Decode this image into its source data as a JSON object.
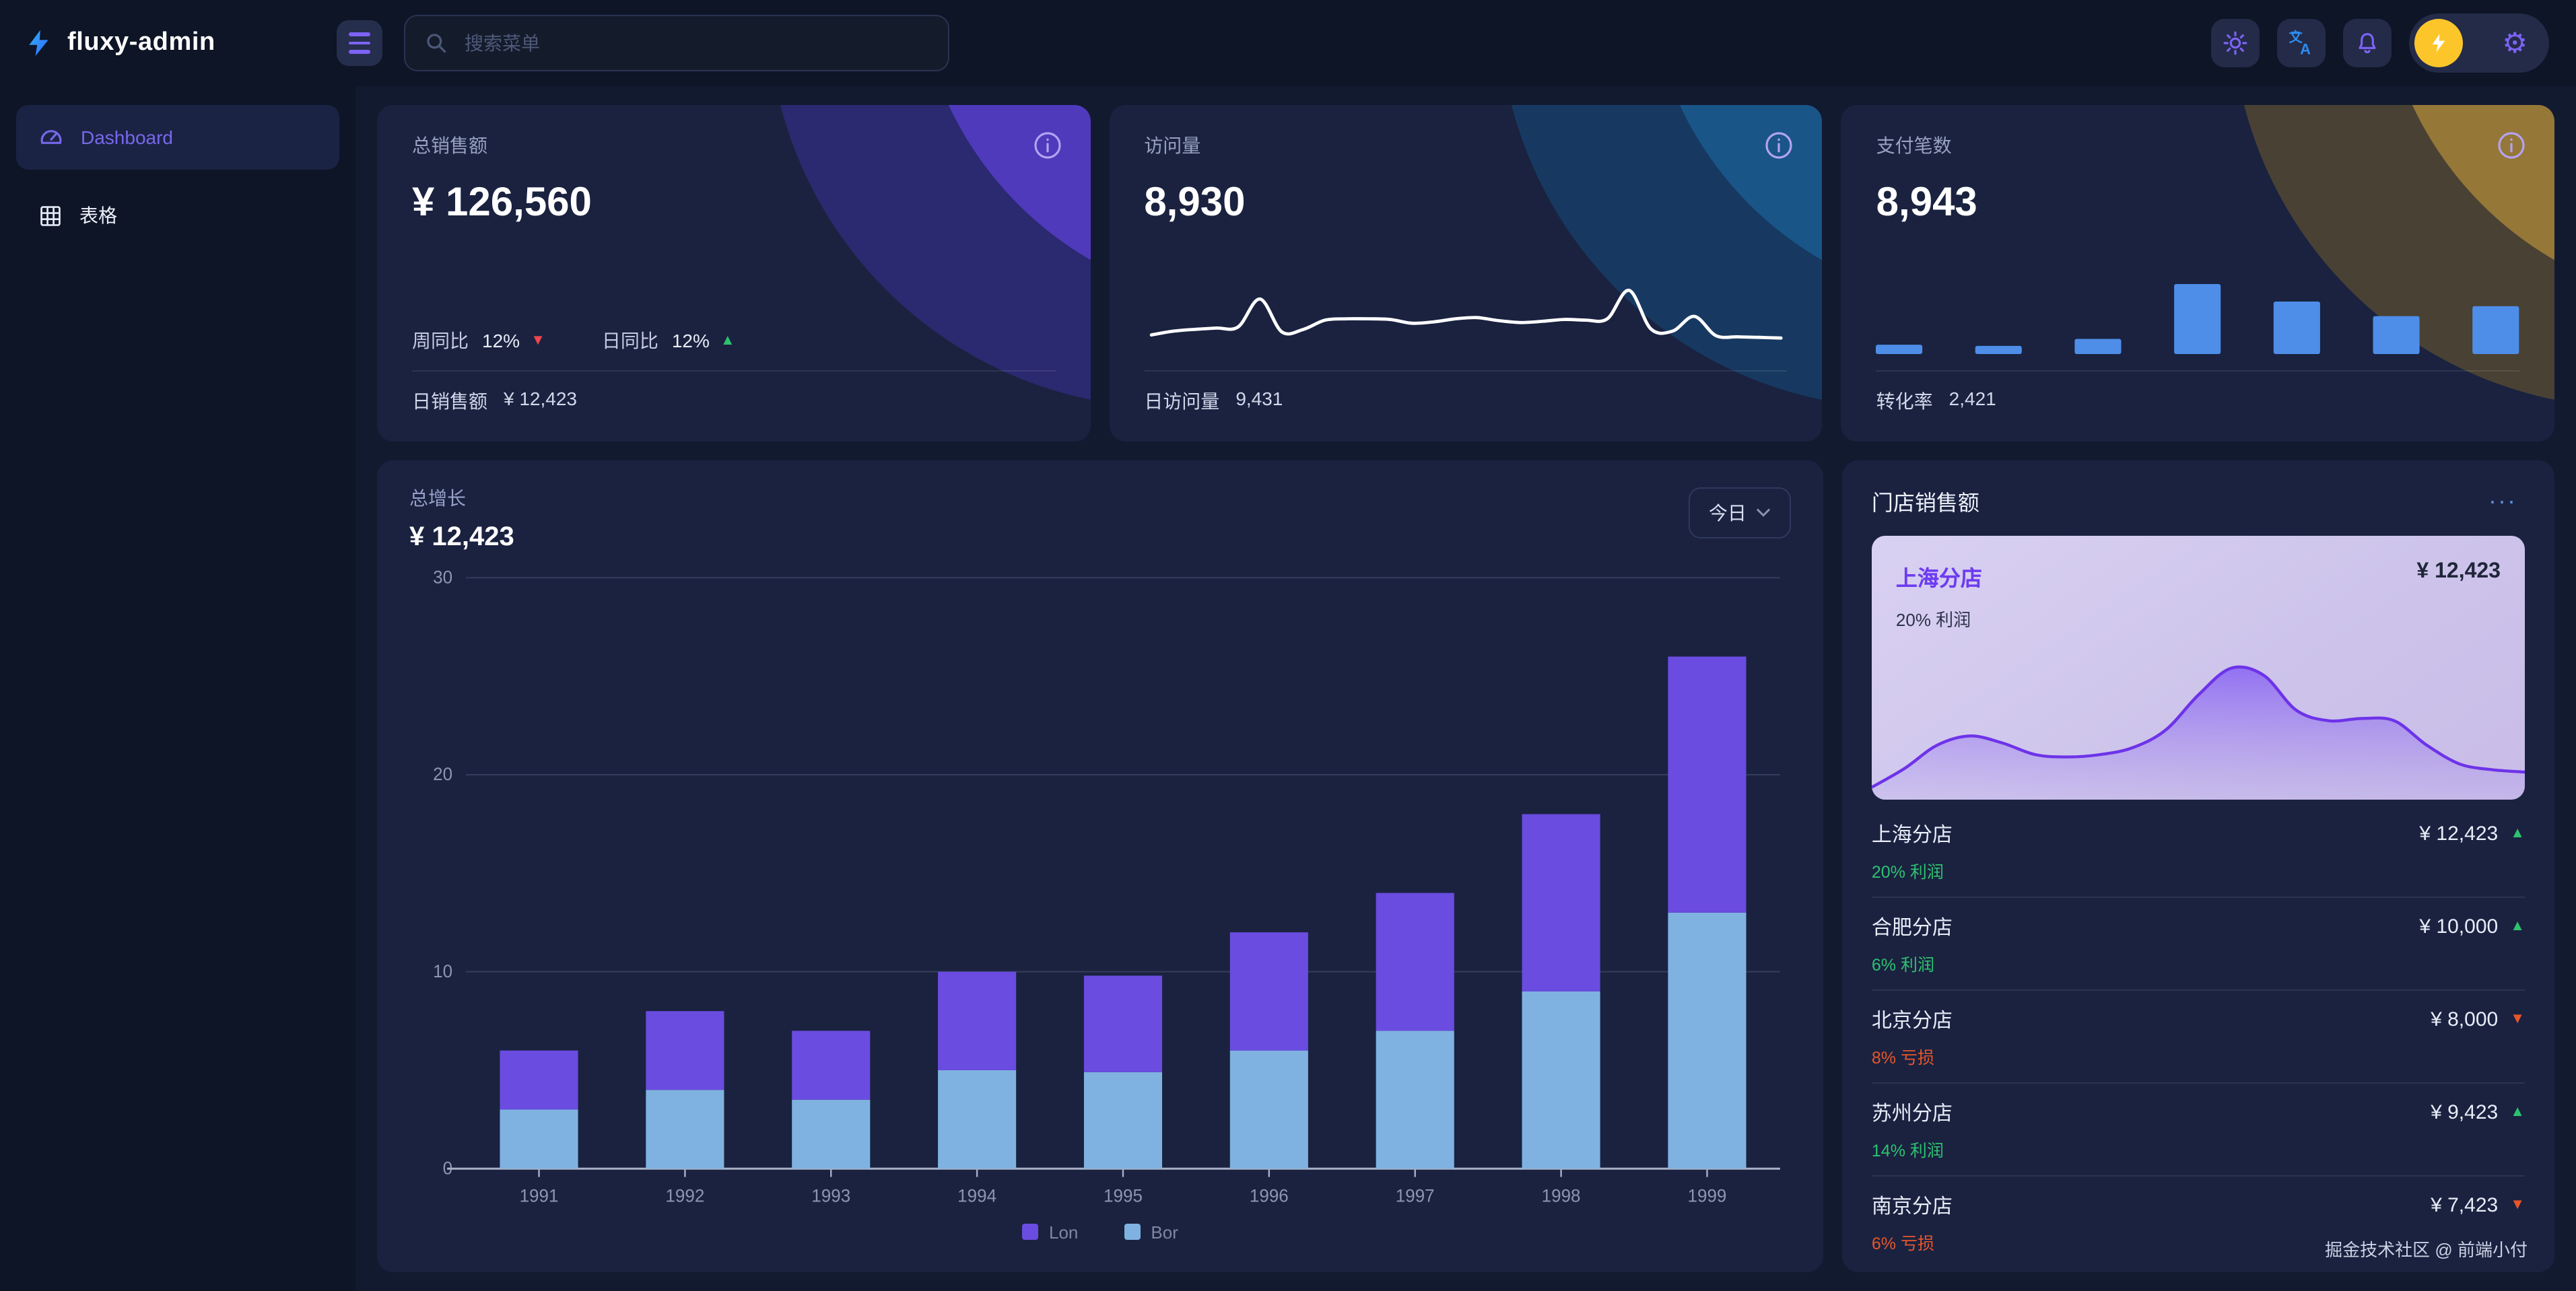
{
  "header": {
    "logo_text": "fluxy-admin",
    "search_placeholder": "搜索菜单"
  },
  "sidebar": {
    "items": [
      {
        "label": "Dashboard",
        "active": true
      },
      {
        "label": "表格",
        "active": false
      }
    ]
  },
  "stat_cards": [
    {
      "title": "总销售额",
      "value": "¥ 126,560",
      "week_label": "周同比",
      "week_value": "12%",
      "week_dir": "down",
      "day_label": "日同比",
      "day_value": "12%",
      "day_dir": "up",
      "footer_label": "日销售额",
      "footer_value": "¥ 12,423"
    },
    {
      "title": "访问量",
      "value": "8,930",
      "footer_label": "日访问量",
      "footer_value": "9,431"
    },
    {
      "title": "支付笔数",
      "value": "8,943",
      "footer_label": "转化率",
      "footer_value": "2,421"
    }
  ],
  "growth_card": {
    "title": "总增长",
    "value": "¥ 12,423",
    "range_label": "今日"
  },
  "store_card": {
    "title": "门店销售额",
    "more": "···",
    "highlight": {
      "name": "上海分店",
      "value": "¥ 12,423",
      "sub": "20% 利润"
    },
    "stores": [
      {
        "name": "上海分店",
        "value": "¥ 12,423",
        "sub": "20% 利润",
        "trend": "up",
        "type": "profit"
      },
      {
        "name": "合肥分店",
        "value": "¥ 10,000",
        "sub": "6% 利润",
        "trend": "up",
        "type": "profit"
      },
      {
        "name": "北京分店",
        "value": "¥ 8,000",
        "sub": "8% 亏损",
        "trend": "down",
        "type": "loss"
      },
      {
        "name": "苏州分店",
        "value": "¥ 9,423",
        "sub": "14% 利润",
        "trend": "up",
        "type": "profit"
      },
      {
        "name": "南京分店",
        "value": "¥ 7,423",
        "sub": "6% 亏损",
        "trend": "down",
        "type": "loss"
      }
    ],
    "footer": "掘金技术社区 @ 前端小付"
  },
  "icons": {
    "up": "▲",
    "down": "▼"
  },
  "colors": {
    "accent_purple": "#7668ea",
    "bar_purple": "#6a4ce0",
    "bar_blue": "#7fb2e0",
    "mini_bar_blue": "#4e8ee8",
    "green": "#2ec26e",
    "red": "#f0454e",
    "orange": "#e8562a",
    "avatar_yellow": "#fcc62b",
    "translate_blue": "#2e8bf0",
    "info_lavender": "#b3a3f2",
    "area_line": "#6d33e8"
  },
  "chart_data": [
    {
      "id": "growth",
      "type": "bar",
      "stacked": true,
      "title": "总增长",
      "categories": [
        "1991",
        "1992",
        "1993",
        "1994",
        "1995",
        "1996",
        "1997",
        "1998",
        "1999"
      ],
      "series": [
        {
          "name": "Lon",
          "color": "#6a4ce0",
          "values": [
            3,
            4,
            3.5,
            5,
            4.9,
            6,
            7,
            9,
            13
          ]
        },
        {
          "name": "Bor",
          "color": "#7fb2e0",
          "values": [
            3,
            4,
            3.5,
            5,
            4.9,
            6,
            7,
            9,
            13
          ]
        }
      ],
      "ylim": [
        0,
        30
      ],
      "yticks": [
        0,
        10,
        20,
        30
      ],
      "grid": true,
      "legend_position": "bottom"
    },
    {
      "id": "visits",
      "type": "line",
      "color": "#ffffff",
      "ylim": [
        0,
        10
      ],
      "values": [
        2.0,
        2.6,
        2.9,
        3.1,
        3.3,
        7.8,
        2.5,
        2.9,
        4.4,
        4.6,
        4.6,
        4.5,
        3.9,
        4.1,
        4.6,
        4.8,
        4.3,
        4.0,
        4.2,
        4.5,
        4.4,
        4.6,
        9.2,
        3.0,
        2.6,
        5.0,
        1.9,
        1.7,
        1.6,
        1.5
      ]
    },
    {
      "id": "payments",
      "type": "bar",
      "color": "#4e8ee8",
      "ylim": [
        0,
        12
      ],
      "values": [
        1.6,
        1.4,
        2.6,
        12,
        9,
        6.5,
        8.2
      ]
    },
    {
      "id": "store",
      "type": "area",
      "line_color": "#6d33e8",
      "fill_from": "rgba(124,80,245,0.72)",
      "fill_to": "rgba(150,120,238,0.08)",
      "ylim": [
        0,
        12
      ],
      "values": [
        0.6,
        2.2,
        4.2,
        5.0,
        4.4,
        3.4,
        3.2,
        3.4,
        4.0,
        5.5,
        8.5,
        10.8,
        10.2,
        7.2,
        6.3,
        6.5,
        6.3,
        4.2,
        2.6,
        2.1,
        1.9
      ]
    }
  ]
}
